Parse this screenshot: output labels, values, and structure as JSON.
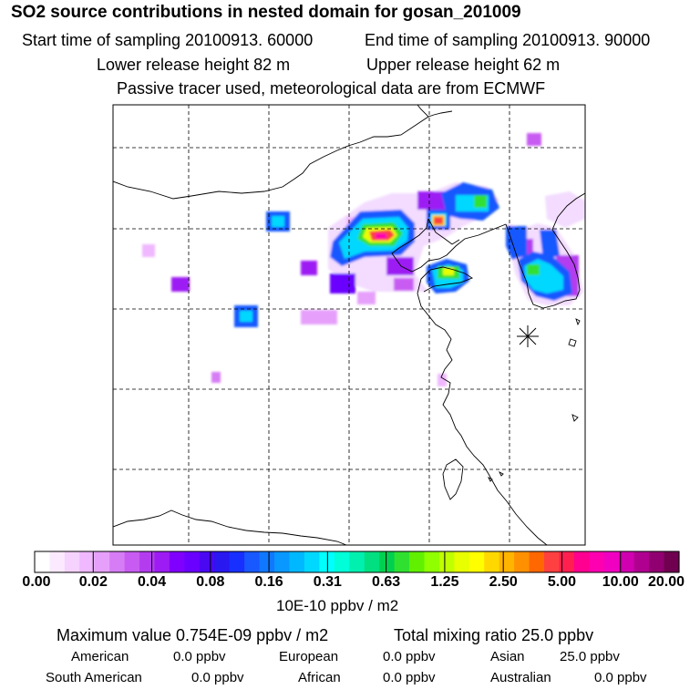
{
  "header": {
    "title": "SO2 source contributions in nested domain for gosan_201009",
    "start_time": "Start time of sampling 20100913. 60000",
    "end_time": "End time of sampling 20100913. 90000",
    "lower_height": "Lower release height   82 m",
    "upper_height": "Upper release height   62 m",
    "tracer_note": "Passive tracer used, meteorological data are from ECMWF"
  },
  "colorbar": {
    "ticks": [
      "0.00",
      "0.02",
      "0.04",
      "0.08",
      "0.16",
      "0.31",
      "0.63",
      "1.25",
      "2.50",
      "5.00",
      "10.00",
      "20.00"
    ],
    "units": "10E-10 ppbv / m2",
    "colors": [
      "#ffffff",
      "#fbeaff",
      "#f6d2ff",
      "#efb8ff",
      "#e6a0fb",
      "#d67cf5",
      "#c85cf2",
      "#b43cef",
      "#9d1cf3",
      "#8000ff",
      "#6a00ff",
      "#4a08f2",
      "#2a18f0",
      "#1830ff",
      "#1858ff",
      "#1078ff",
      "#0898ff",
      "#00b8ff",
      "#00d8ff",
      "#00ffff",
      "#00ffd8",
      "#00f0b0",
      "#00e080",
      "#00d050",
      "#30e030",
      "#60f000",
      "#90ff00",
      "#c0ff00",
      "#e8ff00",
      "#ffff00",
      "#ffd800",
      "#ffb400",
      "#ff9000",
      "#ff6800",
      "#ff4040",
      "#ff2050",
      "#ff0090",
      "#ff00b0",
      "#f000c0",
      "#d000b0",
      "#b00090",
      "#900070",
      "#700050"
    ]
  },
  "stats": {
    "max_label": "Maximum value  0.754E-09 ppbv / m2",
    "total_label": "Total mixing ratio       25.0 ppbv",
    "regions": [
      {
        "name": "American",
        "value": "0.0 ppbv"
      },
      {
        "name": "European",
        "value": "0.0 ppbv"
      },
      {
        "name": "Asian",
        "value": "25.0 ppbv"
      },
      {
        "name": "South American",
        "value": "0.0 ppbv"
      },
      {
        "name": "African",
        "value": "0.0 ppbv"
      },
      {
        "name": "Australian",
        "value": "0.0 ppbv"
      }
    ]
  },
  "map": {
    "receptor_marker": "asterisk-icon",
    "plume_colors": {
      "faint": "#efb8ff",
      "violet": "#c85cf2",
      "purple": "#9d1cf3",
      "blue": "#1858ff",
      "cyan": "#00d8ff",
      "green": "#30e030",
      "yellow": "#e8ff00",
      "red": "#ff4040",
      "magenta": "#ff00b0"
    }
  }
}
